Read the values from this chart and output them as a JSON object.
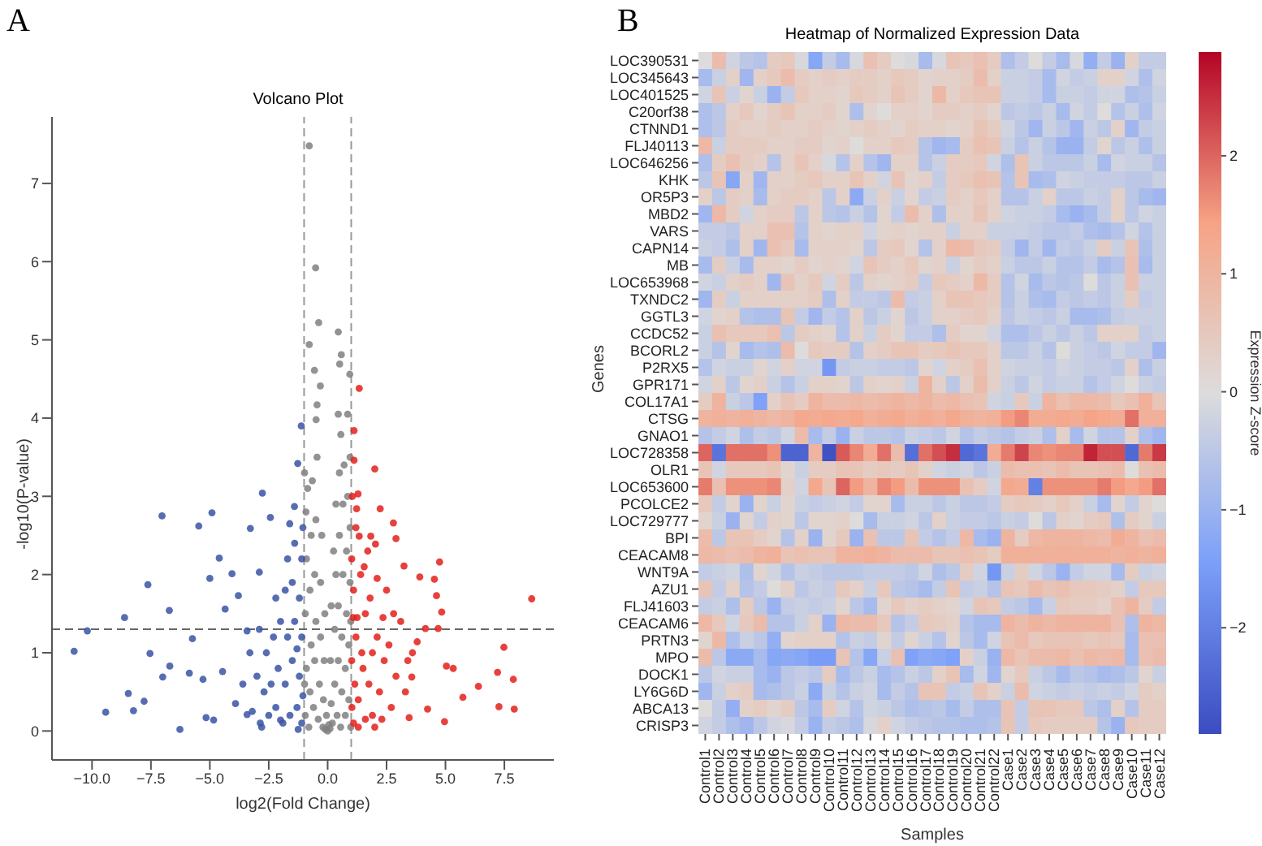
{
  "chart_data": [
    {
      "type": "scatter",
      "title": "Volcano Plot",
      "xlabel": "log2(Fold Change)",
      "ylabel": "-log10(P-value)",
      "annotations": [
        "A"
      ],
      "xlim": [
        -11.7,
        9.6
      ],
      "ylim": [
        -0.37,
        7.85
      ],
      "xticks": [
        {
          "value": -10,
          "label": "−10.0"
        },
        {
          "value": -7.5,
          "label": "−7.5"
        },
        {
          "value": -5,
          "label": "−5.0"
        },
        {
          "value": -2.5,
          "label": "−2.5"
        },
        {
          "value": 0,
          "label": "0.0"
        },
        {
          "value": 2.5,
          "label": "2.5"
        },
        {
          "value": 5,
          "label": "5.0"
        },
        {
          "value": 7.5,
          "label": "7.5"
        }
      ],
      "yticks": [
        0,
        1,
        2,
        3,
        4,
        5,
        6,
        7
      ],
      "marker": "circle",
      "grid": false,
      "ref_lines": [
        {
          "axis": "x",
          "value": -1,
          "color": "#999999",
          "line_style": "dashed"
        },
        {
          "axis": "x",
          "value": 1,
          "color": "#999999",
          "line_style": "dashed"
        },
        {
          "axis": "y",
          "value": 1.3,
          "color": "#666666",
          "line_style": "dashed"
        }
      ],
      "series": [
        {
          "color": "#808080",
          "x": [
            -0.78,
            -0.51,
            -0.38,
            -0.78,
            -0.56,
            -0.31,
            0.45,
            0.58,
            0.51,
            0.94,
            -0.45,
            0.45,
            0.85,
            -0.49,
            0.56,
            -0.95,
            -0.9,
            -0.95,
            -0.9,
            -0.92,
            -0.85,
            -0.8,
            -0.75,
            -0.7,
            -0.75,
            -0.7,
            -0.65,
            -0.6,
            -0.55,
            -0.5,
            -0.55,
            -0.5,
            -0.45,
            -0.4,
            -0.35,
            -0.3,
            -0.3,
            -0.25,
            -0.2,
            -0.18,
            -0.15,
            -0.12,
            -0.1,
            0,
            0.05,
            -0.05,
            0.1,
            0.15,
            0.12,
            0.15,
            0.2,
            0.25,
            0.3,
            0.3,
            0.35,
            0.35,
            0.4,
            0.45,
            0.45,
            0.5,
            0.5,
            0.55,
            0.6,
            0.6,
            0.65,
            0.65,
            0.7,
            0.75,
            0.75,
            0.8,
            0.8,
            0.85,
            0.9,
            0.9,
            0.95,
            0.95,
            0.95,
            -0.98,
            -0.98,
            0.98,
            0.98
          ],
          "values": [
            7.48,
            5.92,
            5.22,
            4.94,
            4.61,
            4.41,
            5.1,
            4.81,
            4.69,
            4.56,
            4.17,
            4.05,
            4.05,
            3.98,
            3.79,
            0.2,
            0.8,
            1.5,
            2.2,
            2.8,
            3.1,
            0.05,
            0.5,
            1.1,
            1.8,
            2.5,
            3.2,
            0.3,
            0.9,
            1.4,
            2.0,
            2.7,
            3.5,
            0.15,
            0.6,
            1.2,
            1.9,
            2.5,
            0.05,
            0.4,
            0.9,
            1.5,
            0.02,
            0.0,
            0.08,
            0.2,
            0.03,
            0.35,
            0.9,
            1.6,
            0.1,
            2.3,
            0.6,
            1.3,
            2.0,
            2.9,
            0.2,
            0.9,
            1.6,
            2.5,
            3.3,
            0.05,
            0.5,
            1.2,
            2.0,
            2.9,
            3.4,
            0.2,
            0.8,
            1.5,
            2.3,
            3.0,
            0.4,
            1.1,
            1.9,
            2.6,
            3.5,
            0.6,
            3.3,
            0.05,
            1.4
          ]
        },
        {
          "color": "#3a53a4",
          "x": [
            -10.76,
            -10.2,
            -9.42,
            -8.62,
            -8.46,
            -8.24,
            -7.79,
            -7.63,
            -7.54,
            -7.03,
            -6.72,
            -6.7,
            -7.0,
            -6.27,
            -5.47,
            -4.91,
            -4.6,
            -5.0,
            -5.74,
            -5.87,
            -5.29,
            -5.16,
            -4.84,
            -4.46,
            -4.06,
            -4.35,
            -3.28,
            -2.77,
            -2.43,
            -1.61,
            -1.12,
            -1.27,
            -1.41,
            -2.9,
            -3.79,
            -3.42,
            -3.91,
            -3.42,
            -2.86,
            -2.0,
            -1.1,
            -1.3,
            -1.6,
            -1.9,
            -2.2,
            -2.5,
            -1.2,
            -1.5,
            -1.8,
            -2.1,
            -2.4,
            -2.7,
            -3.0,
            -1.1,
            -1.4,
            -1.7,
            -2.0,
            -2.3,
            -2.6,
            -1.2,
            -1.5,
            -1.8,
            -2.2,
            -1.1,
            -1.4,
            -1.7,
            -1.05,
            -3.3,
            -3.6,
            -2.9,
            -1.3,
            -1.05,
            -1.25,
            -2.8,
            -3.2
          ],
          "values": [
            1.02,
            1.28,
            0.24,
            1.45,
            0.48,
            0.26,
            0.38,
            1.87,
            0.99,
            2.75,
            1.54,
            0.83,
            0.69,
            0.02,
            2.62,
            2.79,
            2.21,
            1.95,
            1.18,
            0.74,
            0.66,
            0.17,
            0.14,
            0.76,
            2.01,
            1.56,
            2.59,
            3.04,
            2.73,
            2.65,
            3.9,
            3.42,
            2.87,
            2.03,
            1.73,
            1.28,
            0.35,
            0.21,
            0.1,
            0.14,
            0.1,
            0.3,
            0.2,
            0.1,
            0.3,
            0.2,
            0.7,
            0.9,
            0.6,
            0.8,
            0.6,
            0.5,
            0.7,
            1.2,
            1.4,
            1.2,
            1.4,
            1.2,
            1.0,
            1.7,
            1.9,
            1.8,
            1.7,
            2.2,
            2.4,
            2.2,
            2.6,
            1.0,
            0.6,
            1.3,
            1.05,
            0.45,
            0.02,
            0.05,
            0.25
          ]
        },
        {
          "color": "#e3201c",
          "x": [
            8.66,
            7.48,
            7.21,
            7.88,
            7.27,
            7.92,
            6.4,
            5.74,
            5.04,
            5.33,
            4.96,
            4.75,
            4.53,
            4.62,
            4.84,
            4.69,
            2.03,
            2.0,
            2.79,
            2.9,
            3.24,
            3.91,
            4.15,
            3.8,
            3.57,
            4.24,
            3.46,
            1.34,
            1.12,
            1.12,
            1.29,
            1.23,
            2.23,
            1.34,
            1.83,
            1.1,
            1.3,
            1.5,
            1.2,
            1.6,
            1.1,
            1.4,
            1.8,
            2.1,
            2.4,
            2.2,
            1.9,
            2.7,
            2.9,
            2.6,
            3.1,
            2.5,
            1.7,
            1.2,
            1.05,
            1.3,
            1.6,
            2.0,
            2.3,
            1.15,
            1.45,
            1.75,
            1.25,
            1.9,
            3.3,
            3.6,
            2.8,
            3.4,
            2.1,
            1.55,
            2.35,
            1.02,
            1.08,
            1.02,
            1.03
          ],
          "values": [
            1.69,
            1.07,
            0.75,
            0.66,
            0.31,
            0.28,
            0.57,
            0.43,
            0.83,
            0.8,
            0.12,
            2.16,
            1.94,
            1.73,
            1.52,
            1.31,
            2.39,
            3.35,
            2.66,
            2.46,
            2.11,
            1.97,
            1.31,
            1.14,
            0.69,
            0.28,
            0.17,
            4.38,
            3.84,
            3.46,
            3.03,
            2.84,
            2.84,
            2.49,
            2.49,
            0.1,
            0.4,
            0.8,
            1.2,
            1.5,
            1.8,
            2.0,
            1.7,
            1.2,
            0.9,
            0.5,
            0.2,
            0.3,
            0.7,
            1.1,
            1.4,
            1.8,
            2.3,
            2.6,
            3.0,
            0.05,
            0.15,
            0.05,
            0.15,
            0.6,
            1.0,
            0.6,
            1.45,
            1.0,
            0.5,
            1.0,
            1.5,
            0.9,
            1.95,
            2.1,
            1.45,
            2.2,
            1.45,
            0.9,
            0.3
          ]
        }
      ]
    },
    {
      "type": "heatmap",
      "title": "Heatmap of Normalized Expression Data",
      "xlabel": "Samples",
      "ylabel": "Genes",
      "clabel": "Expression Z-score",
      "annotations": [
        "B"
      ],
      "categories": [
        "Control1",
        "Control2",
        "Control3",
        "Control4",
        "Control5",
        "Control6",
        "Control7",
        "Control8",
        "Control9",
        "Control10",
        "Control11",
        "Control12",
        "Control13",
        "Control14",
        "Control15",
        "Control16",
        "Control17",
        "Control18",
        "Control19",
        "Control20",
        "Control21",
        "Control22",
        "Case1",
        "Case2",
        "Case3",
        "Case4",
        "Case5",
        "Case6",
        "Case7",
        "Case8",
        "Case9",
        "Case10",
        "Case11",
        "Case12"
      ],
      "y_categories": [
        "LOC390531",
        "LOC345643",
        "LOC401525",
        "C20orf38",
        "CTNND1",
        "FLJ40113",
        "LOC646256",
        "KHK",
        "OR5P3",
        "MBD2",
        "VARS",
        "CAPN14",
        "MB",
        "LOC653968",
        "TXNDC2",
        "GGTL3",
        "CCDC52",
        "BCORL2",
        "P2RX5",
        "GPR171",
        "COL17A1",
        "CTSG",
        "GNAO1",
        "LOC728358",
        "OLR1",
        "LOC653600",
        "PCOLCE2",
        "LOC729777",
        "BPI",
        "CEACAM8",
        "WNT9A",
        "AZU1",
        "FLJ41603",
        "CEACAM6",
        "PRTN3",
        "MPO",
        "DOCK1",
        "LY6G6D",
        "ABCA13",
        "CRISP3"
      ],
      "clim": [
        -2.9,
        2.88
      ],
      "cticks": [
        {
          "value": -2,
          "label": "−2"
        },
        {
          "value": -1,
          "label": "−1"
        },
        0,
        1,
        2
      ],
      "cells": [
        [
          0,
          0.8,
          -0.2,
          -0.5,
          -0.6,
          0.4,
          0.5,
          -0.1,
          -1.3,
          -0.4,
          -0.8,
          -0.1,
          0.7,
          0.4,
          0,
          -0.1,
          -0.8,
          -0.1,
          0.6,
          0.5,
          0.7,
          0.4,
          -0.7,
          -0.4,
          0,
          -0.4,
          -0.8,
          -0.1,
          -1.1,
          -0.4,
          -1.0,
          0.3,
          -0.4,
          -0.4
        ],
        [
          -0.8,
          -0.3,
          0.3,
          -0.9,
          0.3,
          0.5,
          0.8,
          0.4,
          0.3,
          0.4,
          0.3,
          0.4,
          0.4,
          0.3,
          0.5,
          0.4,
          0.2,
          0.3,
          0.3,
          0.4,
          0.8,
          0.3,
          -0.3,
          -0.3,
          -0.4,
          -0.8,
          -0.2,
          -0.4,
          -0.3,
          0.3,
          0.3,
          -0.2,
          -0.7,
          -0.2
        ],
        [
          -0.2,
          0.6,
          -0.3,
          0.2,
          -0.3,
          -1.0,
          -0.4,
          0.5,
          0.3,
          0.3,
          0.2,
          0.5,
          0.4,
          0.3,
          0.6,
          0.4,
          0.2,
          0.9,
          0.3,
          0.5,
          0.6,
          0.6,
          -0.3,
          -0.3,
          -0.4,
          -0.8,
          -0.3,
          -0.3,
          -0.4,
          -0.2,
          -0.2,
          -0.7,
          -0.6,
          -0.3
        ],
        [
          -0.7,
          -0.5,
          0.3,
          0.5,
          0.2,
          0.4,
          0.6,
          0.3,
          0.3,
          0.4,
          0.2,
          -0.7,
          0.2,
          0,
          0.3,
          0.3,
          0.2,
          0.4,
          0.4,
          0.3,
          0.4,
          0.2,
          -0.5,
          -0.4,
          -0.5,
          -0.3,
          -0.8,
          -0.2,
          -0.4,
          0,
          -0.6,
          -0.3,
          -0.7,
          -0.2
        ],
        [
          -0.7,
          -0.5,
          0.4,
          0.3,
          0.3,
          0.4,
          0.3,
          0.3,
          0.4,
          0.3,
          0.2,
          0.3,
          0.4,
          0.3,
          0.2,
          0.4,
          0.3,
          0.3,
          0.2,
          0.3,
          0.6,
          0.4,
          -0.2,
          -0.5,
          -0.9,
          -0.3,
          -0.5,
          -0.9,
          -0.3,
          -0.5,
          0.3,
          -0.9,
          -0.4,
          -0.3
        ],
        [
          0.9,
          -0.3,
          0.4,
          0.4,
          0.4,
          0.3,
          0.3,
          0.4,
          0.4,
          0.2,
          0.3,
          0,
          0.3,
          0.3,
          0.5,
          0.4,
          -0.6,
          -0.9,
          -0.8,
          0.4,
          0.7,
          0.6,
          -0.3,
          -0.6,
          -0.3,
          -0.6,
          -1.0,
          -1.0,
          -0.4,
          0.2,
          -0.5,
          -0.3,
          -0.7,
          -0.3
        ],
        [
          -0.7,
          0.4,
          0.7,
          0.4,
          0.3,
          -0.6,
          0.3,
          0.6,
          0.3,
          -0.1,
          -0.6,
          0.3,
          -0.6,
          -0.9,
          0.3,
          0.3,
          -0.6,
          -0.3,
          0.4,
          0.4,
          0.5,
          -0.2,
          -0.7,
          0.6,
          -0.3,
          -0.5,
          -0.5,
          -0.5,
          -0.3,
          -0.8,
          -0.2,
          -0.3,
          -0.3,
          -0.6
        ],
        [
          -0.5,
          0.6,
          -1.3,
          0.3,
          -0.9,
          0.3,
          0.3,
          0.4,
          0.5,
          0.3,
          0.3,
          0.6,
          0.3,
          -0.2,
          0.6,
          0.2,
          0.3,
          -0.4,
          0.4,
          0.5,
          0.7,
          0.6,
          -0.6,
          0.6,
          -0.8,
          -0.7,
          -0.2,
          -0.3,
          -0.4,
          -0.4,
          -0.4,
          -0.5,
          -0.5,
          -0.3
        ],
        [
          0.3,
          -0.5,
          0.4,
          0.3,
          -0.8,
          0.3,
          0.4,
          0.4,
          0.3,
          -0.5,
          0.3,
          -1.2,
          -0.3,
          0.3,
          -0.3,
          0.2,
          -0.4,
          -0.3,
          0.4,
          0.3,
          0.5,
          0.3,
          -0.6,
          -0.6,
          -0.3,
          0.3,
          -0.5,
          -0.5,
          -0.3,
          -0.4,
          0.3,
          -0.5,
          -0.8,
          -0.9
        ],
        [
          -0.9,
          0.9,
          0.4,
          -0.2,
          0.3,
          0.4,
          0.4,
          -0.5,
          0.3,
          -0.5,
          -0.6,
          -0.3,
          -0.6,
          0.2,
          -0.4,
          0.8,
          0.3,
          -0.7,
          0.3,
          0.3,
          0.6,
          0.3,
          -0.2,
          -0.3,
          -0.3,
          -0.4,
          -0.8,
          -1.0,
          -0.8,
          -0.4,
          0.3,
          -0.5,
          -0.2,
          -0.3
        ],
        [
          -0.4,
          -0.4,
          -0.5,
          0.3,
          0.3,
          0.7,
          0.7,
          -0.6,
          0.3,
          0.2,
          0.3,
          0.3,
          -0.2,
          0.2,
          0.3,
          0.2,
          0.3,
          0.3,
          -0.3,
          0.3,
          0.3,
          -0.3,
          -0.3,
          -0.3,
          -0.4,
          -0.5,
          -0.5,
          -0.4,
          -0.7,
          -0.8,
          -0.6,
          -0.2,
          -0.6,
          -0.3
        ],
        [
          -0.3,
          -0.4,
          -0.7,
          0.3,
          -0.9,
          0.7,
          0.5,
          -0.8,
          0.3,
          0.3,
          0.3,
          0.2,
          -0.5,
          0.4,
          0.5,
          0.2,
          -0.6,
          0.3,
          0.9,
          0.8,
          0.5,
          0.4,
          -0.4,
          -0.9,
          -0.4,
          -0.9,
          -0.4,
          -0.5,
          -0.3,
          0.4,
          -0.3,
          0.6,
          -0.7,
          -0.3
        ],
        [
          -0.8,
          0.4,
          -0.3,
          -0.8,
          0.3,
          0.3,
          0.2,
          0.4,
          0.2,
          0.3,
          0.2,
          -0.2,
          0.6,
          0.4,
          0.3,
          0.5,
          0.2,
          0.3,
          -0.3,
          0.2,
          0.4,
          0.3,
          -0.3,
          -0.5,
          -0.5,
          -0.3,
          -0.6,
          -0.6,
          -0.4,
          -0.8,
          -0.6,
          0.7,
          -0.8,
          -0.3
        ],
        [
          -0.2,
          -0.3,
          0.3,
          0.4,
          0.3,
          -0.9,
          0.6,
          0.3,
          0.5,
          -0.2,
          0.4,
          -0.5,
          0.3,
          0.2,
          0.3,
          0.4,
          -0.4,
          0.5,
          0.4,
          0.3,
          0.9,
          0.4,
          -0.6,
          -0.2,
          -0.8,
          -0.5,
          -0.6,
          -0.5,
          0,
          -0.5,
          -0.3,
          0.7,
          -0.3,
          -0.3
        ],
        [
          -0.9,
          0.4,
          -0.3,
          0.3,
          0.3,
          0.3,
          0.3,
          0.3,
          0.4,
          -0.7,
          0.3,
          -0.4,
          -0.4,
          -0.5,
          0.8,
          -0.4,
          -0.3,
          0.3,
          0.6,
          0.6,
          0.5,
          0.4,
          -0.6,
          -0.3,
          -0.7,
          -0.8,
          -0.4,
          -0.5,
          -0.4,
          -0.5,
          -0.3,
          0.4,
          -0.4,
          -0.3
        ],
        [
          -0.2,
          0.2,
          0.3,
          -0.6,
          -0.7,
          -0.7,
          0.6,
          -0.4,
          -0.9,
          -0.4,
          -0.6,
          0.3,
          -0.5,
          -0.3,
          0.2,
          -0.5,
          -0.3,
          0.3,
          0.3,
          0.4,
          0.5,
          0.3,
          -0.5,
          -0.3,
          -0.4,
          -0.5,
          -0.3,
          -0.8,
          -0.8,
          -0.7,
          -0.4,
          -0.3,
          -0.3,
          -0.3
        ],
        [
          -0.3,
          0.7,
          0.5,
          0.5,
          0.5,
          0.7,
          -0.5,
          0.4,
          0.3,
          0.2,
          -0.6,
          0.3,
          -0.3,
          0.4,
          0.2,
          -0.4,
          -0.4,
          -0.7,
          0.4,
          0.2,
          0.2,
          -0.2,
          -0.7,
          -0.7,
          -0.5,
          -0.3,
          -0.5,
          -0.3,
          -0.5,
          0.3,
          0.3,
          0.3,
          -0.4,
          -0.3
        ],
        [
          -0.3,
          -0.6,
          0.2,
          -0.8,
          -0.6,
          -0.7,
          0.8,
          0,
          0.5,
          0.4,
          0.4,
          -0.6,
          0.3,
          0.4,
          0.6,
          0.6,
          0.4,
          0.5,
          0.6,
          0.5,
          0.5,
          0.3,
          -0.5,
          -0.5,
          -0.3,
          -0.6,
          0,
          -0.3,
          -0.4,
          -0.5,
          -0.2,
          -0.4,
          -0.4,
          -0.9
        ],
        [
          -0.6,
          -0.2,
          -0.3,
          -0.3,
          0.2,
          -0.2,
          0.3,
          -0.2,
          -0.2,
          -1.6,
          -0.4,
          -0.3,
          -0.3,
          -0.4,
          -0.4,
          -0.5,
          0.2,
          -0.2,
          0.3,
          0.4,
          0.7,
          0.3,
          -0.2,
          -0.3,
          -0.3,
          -0.4,
          -0.2,
          -0.3,
          -0.4,
          -0.4,
          -0.5,
          0.3,
          -0.7,
          -0.3
        ],
        [
          -0.2,
          0.3,
          -0.5,
          0.2,
          0.3,
          -0.3,
          -0.6,
          -0.3,
          0.3,
          0.3,
          0.2,
          -0.5,
          0.3,
          0.2,
          0.3,
          -0.3,
          1.0,
          0.3,
          -0.5,
          0.3,
          0.8,
          0.3,
          -0.3,
          -0.5,
          -0.2,
          -0.4,
          -0.3,
          -0.3,
          -0.6,
          -0.4,
          -0.2,
          0,
          -0.3,
          -0.4
        ],
        [
          0.4,
          1.0,
          -0.3,
          -0.5,
          -1.4,
          0.3,
          0.6,
          0.4,
          1.0,
          0.8,
          0.8,
          0.9,
          0.8,
          0.9,
          1.0,
          0.9,
          1.0,
          0.8,
          0.9,
          0.7,
          0.6,
          -0.2,
          -0.3,
          0.5,
          -0.3,
          1.0,
          0.7,
          0.9,
          0.9,
          0.8,
          0.5,
          0.7,
          1.1,
          0.6
        ],
        [
          1.0,
          1.1,
          1.0,
          1.1,
          1.0,
          0.9,
          1.0,
          1.3,
          1.2,
          1.3,
          1.2,
          1.3,
          1.1,
          1.2,
          1.3,
          1.1,
          1.2,
          1.1,
          1.3,
          1.1,
          1.0,
          1.1,
          1.5,
          1.7,
          1.2,
          1.2,
          1.3,
          1.2,
          1.4,
          1.3,
          1.2,
          1.9,
          1.1,
          1.1
        ],
        [
          -0.6,
          -0.4,
          -0.2,
          -0.7,
          -0.4,
          -0.5,
          -0.2,
          0.8,
          -0.8,
          -0.4,
          -1.0,
          -0.3,
          -0.5,
          -0.5,
          -0.6,
          -0.3,
          -0.4,
          -0.5,
          -0.2,
          -0.6,
          -0.4,
          -0.5,
          -0.6,
          -0.4,
          -0.3,
          -0.7,
          0.3,
          -0.8,
          -0.2,
          -0.6,
          -0.6,
          0.3,
          -0.7,
          -0.9
        ],
        [
          2.0,
          -2.2,
          1.9,
          1.9,
          1.9,
          1.6,
          -2.5,
          -2.5,
          1.0,
          -2.8,
          2.1,
          1.7,
          1.2,
          1.9,
          0.8,
          -2.3,
          1.9,
          2.2,
          2.5,
          -2.4,
          -2.2,
          1.2,
          1.8,
          2.3,
          1.7,
          1.6,
          1.7,
          1.7,
          2.6,
          2.2,
          2.2,
          -2.4,
          1.8,
          2.4
        ],
        [
          0.6,
          -0.2,
          0.5,
          0.5,
          0.5,
          0.6,
          0.2,
          -0.3,
          0.4,
          0.4,
          0.6,
          0.6,
          0.4,
          0.5,
          0.4,
          0.6,
          0.3,
          -0.2,
          -0.3,
          -0.2,
          -0.5,
          -0.3,
          0.8,
          0.7,
          0.7,
          0.6,
          0.8,
          0.6,
          0.6,
          0.7,
          0.8,
          0,
          0.7,
          0.8
        ],
        [
          1.8,
          0.7,
          1.6,
          1.6,
          1.6,
          1.7,
          0.3,
          -0.2,
          1.3,
          0.6,
          2.0,
          1.5,
          1.0,
          1.7,
          1.5,
          0.8,
          1.6,
          1.6,
          1.6,
          0.7,
          0.4,
          -0.2,
          1.3,
          1.2,
          -2.0,
          1.6,
          1.6,
          1.6,
          1.6,
          1.8,
          1.5,
          1.3,
          1.5,
          1.9
        ],
        [
          0.5,
          -0.4,
          0.2,
          -1.0,
          0.2,
          -0.3,
          0.2,
          -0.3,
          -0.4,
          -0.3,
          -0.2,
          -0.4,
          0.2,
          0.2,
          -0.8,
          -0.3,
          -0.3,
          -0.5,
          -0.3,
          -0.5,
          -0.5,
          -0.4,
          0.4,
          0.5,
          0.4,
          0.3,
          0.5,
          0.3,
          -0.3,
          -0.8,
          0.2,
          -0.4,
          0.2,
          0
        ],
        [
          0.2,
          -0.3,
          -1.0,
          0.2,
          -0.4,
          0.3,
          0.2,
          -0.5,
          0.2,
          0.2,
          0.3,
          0,
          -0.8,
          -0.3,
          -0.3,
          -0.2,
          -0.5,
          0.3,
          -0.3,
          -0.4,
          -0.4,
          -0.5,
          -0.3,
          -0.4,
          0,
          -0.5,
          0.3,
          0.2,
          0.4,
          0.5,
          -0.7,
          0.4,
          0.2,
          -0.3
        ],
        [
          0.8,
          -0.5,
          0.6,
          0.6,
          0.4,
          0.2,
          -0.6,
          0.3,
          -1.0,
          0.2,
          0.5,
          -1.0,
          0.7,
          -0.5,
          -0.5,
          0.6,
          -0.4,
          -0.6,
          -0.4,
          0.9,
          -0.8,
          -1.0,
          1.0,
          0.4,
          0.9,
          1.0,
          1.0,
          1.0,
          0.9,
          0.8,
          1.2,
          1.0,
          0.7,
          0.8
        ],
        [
          0.9,
          0.8,
          0.7,
          0.8,
          1.0,
          1.1,
          0.6,
          0.7,
          0.6,
          0.6,
          1.0,
          1.0,
          1.1,
          1.0,
          0.8,
          0.8,
          0.8,
          0.6,
          0.6,
          0.7,
          0.6,
          0.4,
          1.1,
          1.1,
          1.1,
          1.1,
          1.1,
          1.1,
          1.1,
          1.1,
          1.0,
          1.1,
          1.0,
          1.1
        ],
        [
          -0.4,
          -0.3,
          -0.2,
          -0.7,
          0.2,
          -0.2,
          -0.6,
          -0.3,
          -0.4,
          -0.5,
          -0.5,
          -0.5,
          -0.4,
          -0.4,
          -0.4,
          -0.5,
          -0.2,
          -0.7,
          -0.5,
          0.4,
          -0.2,
          -1.6,
          -0.3,
          0.4,
          -0.2,
          -0.5,
          -1.0,
          -0.4,
          -0.2,
          -0.2,
          -0.8,
          0.4,
          -0.3,
          -0.2
        ],
        [
          0.6,
          -0.4,
          0.3,
          -0.6,
          -0.4,
          0,
          0.3,
          -0.5,
          -0.3,
          -0.4,
          0.5,
          0.3,
          -0.3,
          0.5,
          -0.5,
          -0.6,
          -0.8,
          -0.4,
          0.6,
          -0.4,
          -0.3,
          -0.6,
          0.6,
          0.5,
          0.8,
          0.6,
          0.7,
          0.5,
          0.5,
          0.4,
          0.3,
          -0.4,
          0.5,
          0.5
        ],
        [
          -0.4,
          -0.3,
          -0.7,
          0.4,
          -0.5,
          -1.0,
          -0.4,
          -0.3,
          -0.4,
          -0.3,
          0.2,
          -0.5,
          -0.8,
          0.2,
          0.5,
          0.3,
          0.4,
          0.3,
          0.2,
          -0.2,
          0.6,
          0.5,
          -0.4,
          -0.5,
          -0.8,
          -0.3,
          0.5,
          0.4,
          0.4,
          0.3,
          0.7,
          1.0,
          0.4,
          -0.4
        ],
        [
          0.9,
          0.5,
          -0.2,
          0.5,
          0.8,
          -0.6,
          -0.6,
          -0.3,
          0.3,
          -1.0,
          0.9,
          0.8,
          0.8,
          0.5,
          -0.6,
          -0.4,
          0.5,
          0.4,
          0.3,
          -0.6,
          -0.8,
          -0.8,
          1.0,
          0.8,
          1.0,
          0.9,
          1.0,
          1.0,
          1.0,
          1.0,
          0.7,
          -0.7,
          1.0,
          0.9
        ],
        [
          0.2,
          0.9,
          -0.7,
          -0.3,
          -0.5,
          -1.1,
          0.2,
          0.3,
          0.3,
          0.3,
          -0.6,
          -0.3,
          -0.4,
          0.2,
          -0.4,
          0.2,
          -0.3,
          -0.6,
          0.2,
          -0.5,
          -0.8,
          -0.2,
          0.6,
          0.8,
          0.5,
          0.6,
          0.6,
          0.6,
          0.5,
          0.6,
          0.5,
          -0.8,
          0.7,
          0.7
        ],
        [
          0.8,
          -0.5,
          -1.2,
          -1.2,
          -0.8,
          -1.3,
          -1.2,
          -1.3,
          -1.5,
          -1.5,
          0.6,
          -0.6,
          -1.3,
          -0.3,
          0.7,
          -1.4,
          -1.2,
          -1.3,
          -1.4,
          0.3,
          -0.3,
          -1.0,
          0.9,
          0.6,
          0.8,
          0.8,
          0.9,
          0.7,
          0.9,
          0.8,
          0.9,
          -0.8,
          0.7,
          0.8
        ],
        [
          -0.5,
          -0.2,
          -0.3,
          -0.3,
          -0.8,
          -1.0,
          -0.5,
          -0.4,
          -0.5,
          0.4,
          -0.8,
          -0.5,
          -0.3,
          -0.8,
          -0.6,
          -0.3,
          -0.5,
          0.3,
          0.6,
          -0.8,
          -0.2,
          -0.9,
          0.2,
          0.5,
          -0.3,
          -0.5,
          -0.8,
          -0.5,
          -0.6,
          -0.8,
          -0.7,
          -0.5,
          0.2,
          -0.3
        ],
        [
          -0.9,
          -0.3,
          0.3,
          0.4,
          -0.8,
          -0.7,
          -0.5,
          -0.3,
          -1.2,
          -0.3,
          -0.6,
          -0.3,
          -0.2,
          -0.8,
          -0.4,
          -0.6,
          0.6,
          0.6,
          -0.4,
          -0.3,
          0.6,
          0.3,
          -0.3,
          0.8,
          -0.2,
          -0.3,
          -0.4,
          -0.3,
          -0.4,
          -0.3,
          -0.4,
          -0.2,
          0.4,
          0.3
        ],
        [
          0,
          -0.4,
          -1.1,
          0.3,
          0.4,
          0.2,
          0.4,
          -0.5,
          -0.8,
          0.4,
          -0.2,
          -0.6,
          -0.2,
          -0.3,
          -0.5,
          -0.7,
          -0.6,
          -0.5,
          -0.8,
          -0.4,
          -0.7,
          -0.7,
          0.6,
          -0.4,
          0.6,
          0.6,
          0.5,
          0.5,
          -0.5,
          -0.7,
          0.3,
          -0.6,
          0.4,
          0.4
        ],
        [
          -0.2,
          -0.4,
          -0.7,
          -0.9,
          -0.5,
          -0.2,
          -0.1,
          -0.4,
          -1.0,
          -0.4,
          -0.5,
          -0.7,
          -0.1,
          0.3,
          -0.2,
          -0.4,
          -0.5,
          -0.6,
          -0.6,
          -0.7,
          -0.7,
          -0.6,
          0.6,
          -0.4,
          0.5,
          0.4,
          0.4,
          0.4,
          0.4,
          -0.6,
          -1.0,
          0.5,
          0.4,
          0.4
        ]
      ]
    }
  ]
}
